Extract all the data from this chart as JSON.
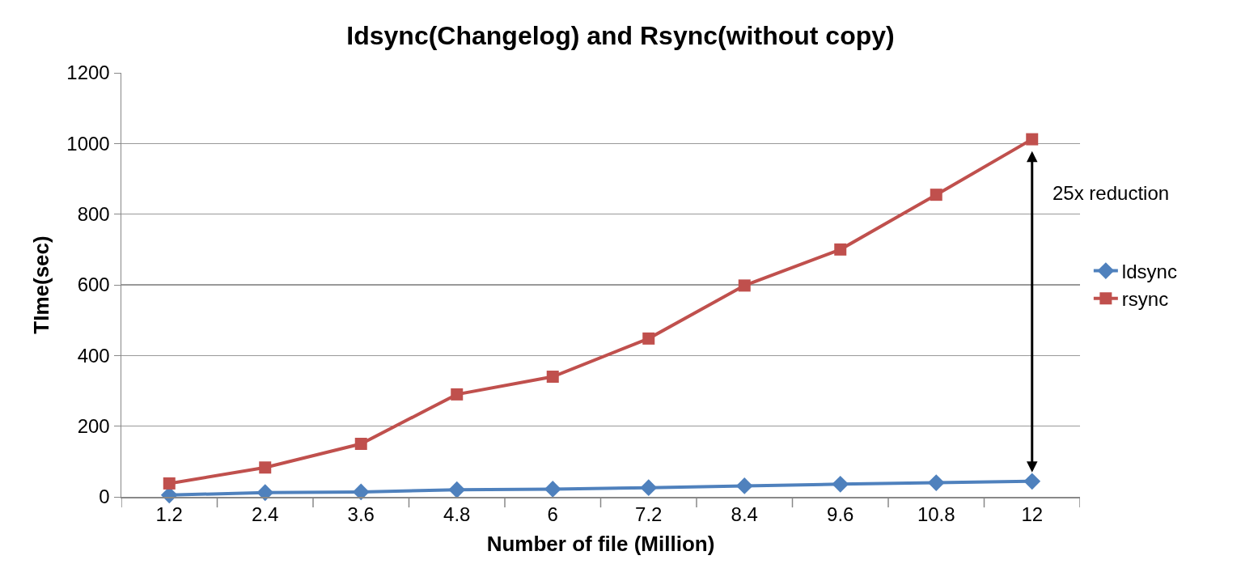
{
  "chart_data": {
    "type": "line",
    "title": "Idsync(Changelog) and Rsync(without copy)",
    "xlabel": "Number of file (Million)",
    "ylabel": "TIme(sec)",
    "categories": [
      "1.2",
      "2.4",
      "3.6",
      "4.8",
      "6",
      "7.2",
      "8.4",
      "9.6",
      "10.8",
      "12"
    ],
    "series": [
      {
        "name": "ldsync",
        "color": "#4f81bd",
        "marker": "diamond",
        "values": [
          5,
          12,
          14,
          20,
          22,
          26,
          31,
          36,
          40,
          44
        ]
      },
      {
        "name": "rsync",
        "color": "#c0504d",
        "marker": "square",
        "values": [
          38,
          83,
          150,
          290,
          340,
          448,
          598,
          700,
          855,
          1012
        ]
      }
    ],
    "ylim": [
      0,
      1200
    ],
    "yticks": [
      0,
      200,
      400,
      600,
      800,
      1000,
      1200
    ],
    "grid": "y",
    "legend": "right",
    "annotations": [
      "25x reduction"
    ],
    "line_style": "solid"
  }
}
